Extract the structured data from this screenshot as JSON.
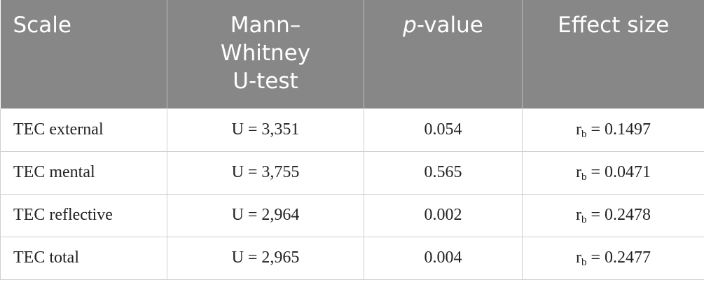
{
  "table": {
    "header": [
      {
        "text": "Scale"
      },
      {
        "text": "Mann–Whitney U-test"
      },
      {
        "italic": "p",
        "text": "-value"
      },
      {
        "text": "Effect size"
      }
    ],
    "rows": [
      {
        "scale": "TEC external",
        "u": "U = 3,351",
        "p": "0.054",
        "effect": {
          "symbol": "r",
          "sub": "b",
          "value": " = 0.1497"
        }
      },
      {
        "scale": "TEC mental",
        "u": "U = 3,755",
        "p": "0.565",
        "effect": {
          "symbol": "r",
          "sub": "b",
          "value": " = 0.0471"
        }
      },
      {
        "scale": "TEC reflective",
        "u": "U = 2,964",
        "p": "0.002",
        "effect": {
          "symbol": "r",
          "sub": "b",
          "value": " = 0.2478"
        }
      },
      {
        "scale": "TEC total",
        "u": "U = 2,965",
        "p": "0.004",
        "effect": {
          "symbol": "r",
          "sub": "b",
          "value": " = 0.2477"
        }
      }
    ]
  }
}
